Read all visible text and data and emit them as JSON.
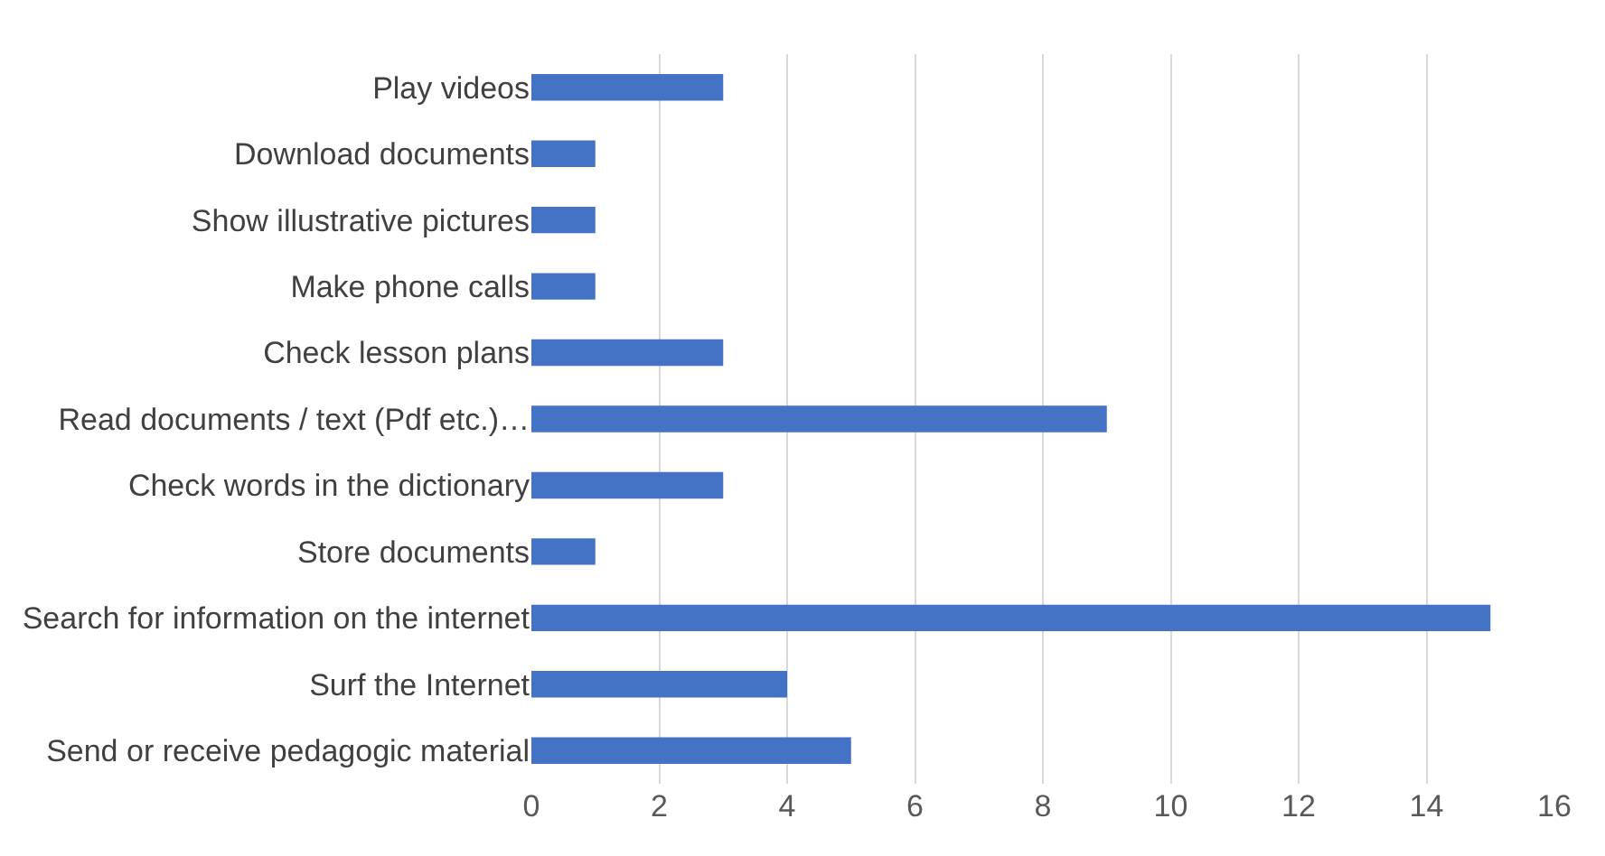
{
  "chart_data": {
    "type": "bar",
    "orientation": "horizontal",
    "categories": [
      "Play videos",
      "Download documents",
      "Show illustrative pictures",
      "Make phone calls",
      "Check lesson plans",
      "Read documents / text (Pdf etc.)…",
      "Check words in the dictionary",
      "Store documents",
      "Search for information on the internet",
      "Surf the Internet",
      "Send or receive pedagogic material"
    ],
    "values": [
      3,
      1,
      1,
      1,
      3,
      9,
      3,
      1,
      15,
      4,
      5
    ],
    "color": "#4472c4",
    "xlim": [
      0,
      16
    ],
    "xticks": [
      0,
      2,
      4,
      6,
      8,
      10,
      12,
      14,
      16
    ],
    "grid": "x",
    "legend": false
  }
}
